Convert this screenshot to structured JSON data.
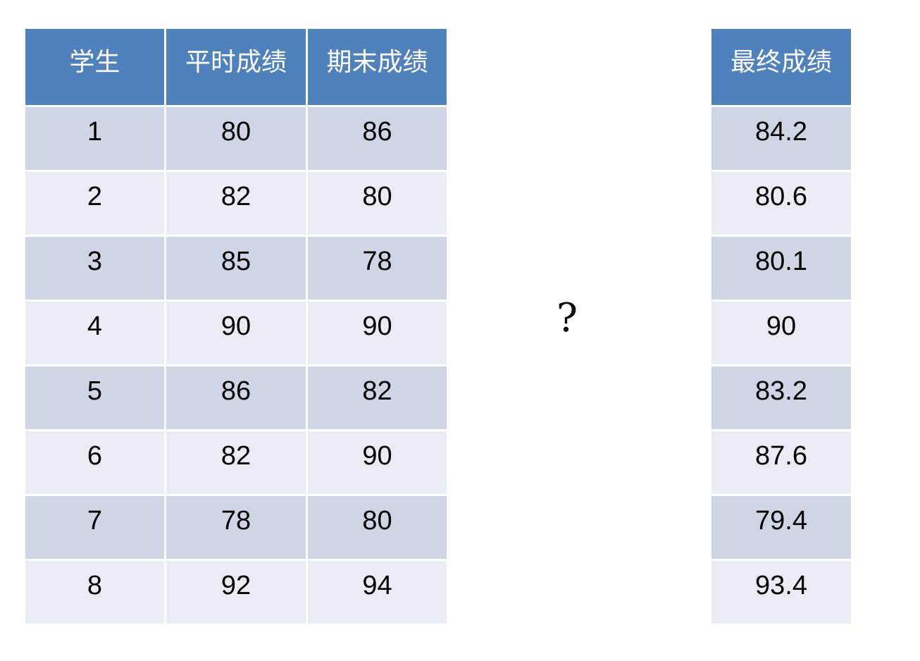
{
  "colors": {
    "header_bg": "#4f81bd",
    "header_text": "#ffffff",
    "band_dark": "#cfd5e4",
    "band_light": "#e9ebf5",
    "cell_text": "#000000"
  },
  "left_table": {
    "headers": [
      "学生",
      "平时成绩",
      "期末成绩"
    ],
    "rows": [
      [
        "1",
        "80",
        "86"
      ],
      [
        "2",
        "82",
        "80"
      ],
      [
        "3",
        "85",
        "78"
      ],
      [
        "4",
        "90",
        "90"
      ],
      [
        "5",
        "86",
        "82"
      ],
      [
        "6",
        "82",
        "90"
      ],
      [
        "7",
        "78",
        "80"
      ],
      [
        "8",
        "92",
        "94"
      ]
    ]
  },
  "separator": {
    "question_mark": "?"
  },
  "right_table": {
    "header": "最终成绩",
    "values": [
      "84.2",
      "80.6",
      "80.1",
      "90",
      "83.2",
      "87.6",
      "79.4",
      "93.4"
    ]
  }
}
